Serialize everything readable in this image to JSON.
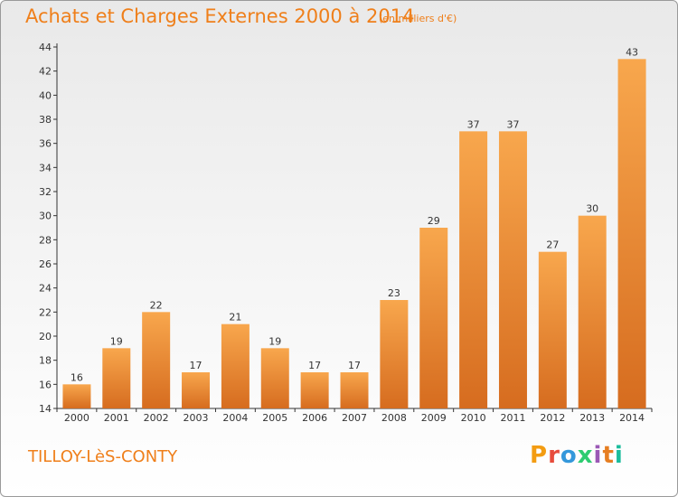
{
  "header": {
    "title": "Achats et Charges Externes 2000 à 2014",
    "subtitle": "(en milliers d'€)"
  },
  "footer": {
    "commune": "TILLOY-LèS-CONTY",
    "logo_text": "Proxiti",
    "logo_colors": [
      "#f39c12",
      "#e74c3c",
      "#3498db",
      "#2ecc71",
      "#9b59b6",
      "#e67e22",
      "#1abc9c"
    ]
  },
  "colors": {
    "accent": "#ef7f1a",
    "bar_light": "#f7a54a",
    "bar_dark": "#d4691e",
    "axis": "#333333"
  },
  "chart_data": {
    "type": "bar",
    "title": "Achats et Charges Externes 2000 à 2014",
    "categories": [
      "2000",
      "2001",
      "2002",
      "2003",
      "2004",
      "2005",
      "2006",
      "2007",
      "2008",
      "2009",
      "2010",
      "2011",
      "2012",
      "2013",
      "2014"
    ],
    "values": [
      16,
      19,
      22,
      17,
      21,
      19,
      17,
      17,
      23,
      29,
      37,
      37,
      27,
      30,
      43
    ],
    "ylim": [
      14,
      44
    ],
    "yticks": [
      14,
      16,
      18,
      20,
      22,
      24,
      26,
      28,
      30,
      32,
      34,
      36,
      38,
      40,
      42,
      44
    ],
    "xlabel": "",
    "ylabel": "",
    "grid": false,
    "legend": "none"
  }
}
